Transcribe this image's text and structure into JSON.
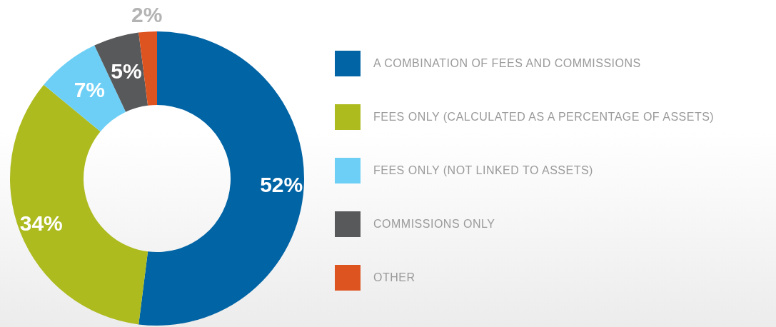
{
  "chart_data": {
    "type": "donut",
    "categories": [
      "A COMBINATION OF FEES AND COMMISSIONS",
      "FEES ONLY (CALCULATED AS A PERCENTAGE OF ASSETS)",
      "FEES ONLY (NOT LINKED TO ASSETS)",
      "COMMISSIONS ONLY",
      "OTHER"
    ],
    "values": [
      52,
      34,
      7,
      5,
      2
    ],
    "value_labels": [
      "52%",
      "34%",
      "7%",
      "5%",
      "2%"
    ],
    "colors": [
      "#0064a5",
      "#adbb1f",
      "#6dcff6",
      "#58595b",
      "#dd5420"
    ],
    "legend": "right"
  }
}
